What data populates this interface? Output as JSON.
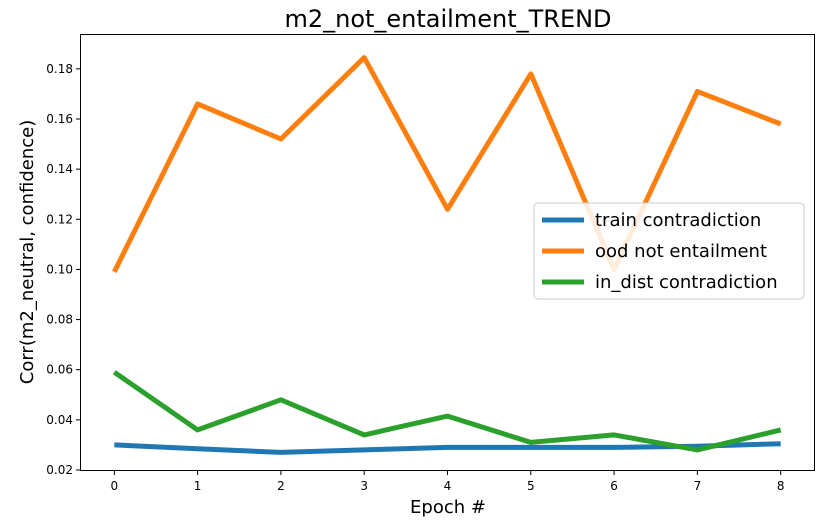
{
  "chart_data": {
    "type": "line",
    "title": "m2_not_entailment_TREND",
    "xlabel": "Epoch #",
    "ylabel": "Corr(m2_neutral, confidence)",
    "x": [
      0,
      1,
      2,
      3,
      4,
      5,
      6,
      7,
      8
    ],
    "xticks": [
      "0",
      "1",
      "2",
      "3",
      "4",
      "5",
      "6",
      "7",
      "8"
    ],
    "yticks": [
      "0.02",
      "0.04",
      "0.06",
      "0.08",
      "0.10",
      "0.12",
      "0.14",
      "0.16",
      "0.18"
    ],
    "xlim": [
      -0.4,
      8.4
    ],
    "ylim": [
      0.02,
      0.1935
    ],
    "grid": false,
    "legend_position": "center-right",
    "series": [
      {
        "name": "train contradiction",
        "color": "#1f77b4",
        "values": [
          0.03,
          0.0285,
          0.027,
          0.028,
          0.029,
          0.029,
          0.029,
          0.0295,
          0.0305
        ]
      },
      {
        "name": "ood not entailment",
        "color": "#ff7f0e",
        "values": [
          0.099,
          0.166,
          0.152,
          0.1845,
          0.124,
          0.178,
          0.1,
          0.171,
          0.158
        ]
      },
      {
        "name": "in_dist contradiction",
        "color": "#2ca02c",
        "values": [
          0.059,
          0.036,
          0.048,
          0.034,
          0.0415,
          0.031,
          0.034,
          0.028,
          0.036
        ]
      }
    ]
  }
}
